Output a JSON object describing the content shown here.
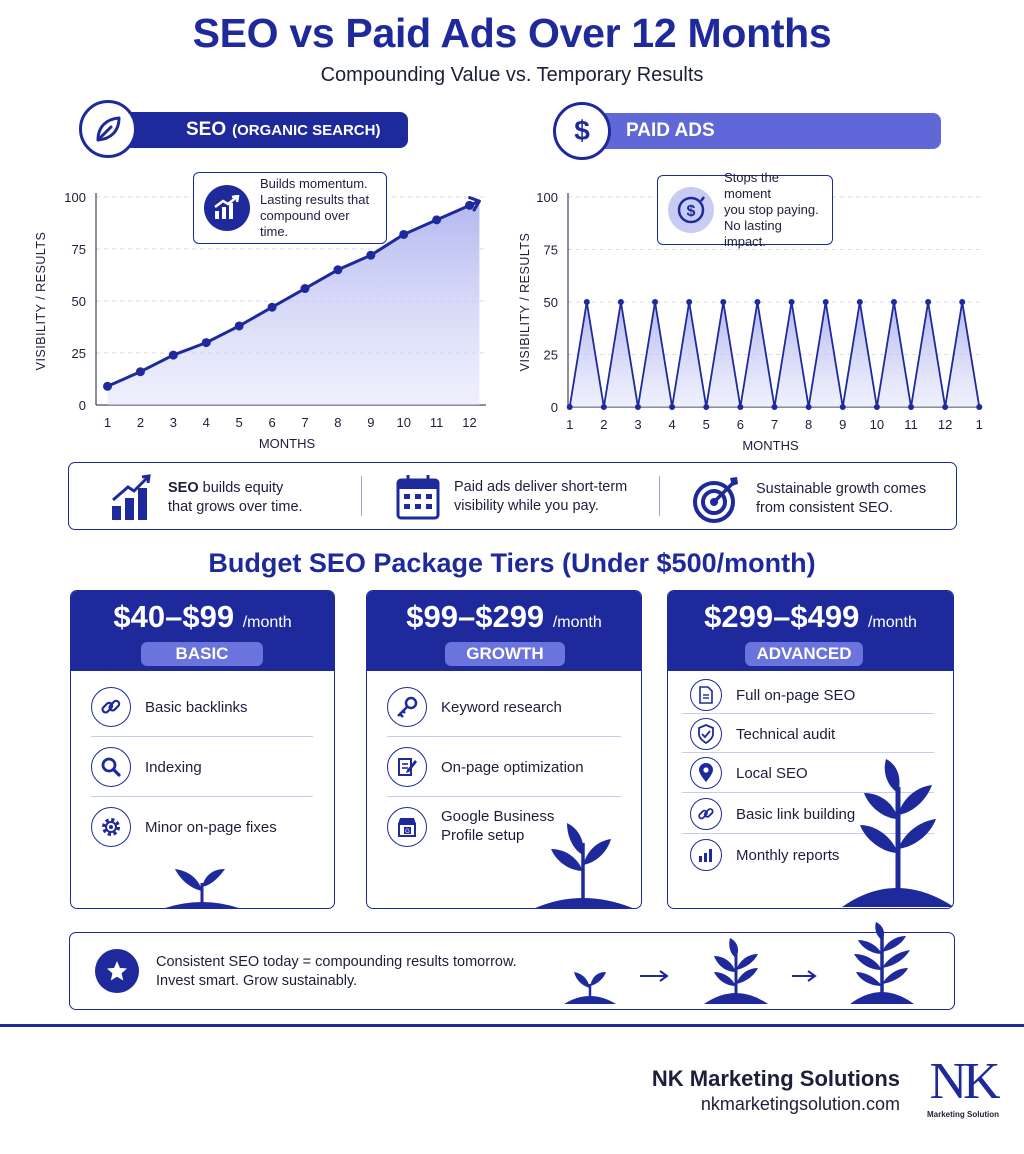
{
  "title": "SEO vs Paid Ads Over 12 Months",
  "subtitle": "Compounding Value vs. Temporary Results",
  "colors": {
    "primary": "#1e2a9b",
    "accent": "#5f68d6",
    "fill": "#c9ccf2"
  },
  "seo": {
    "label": "SEO",
    "label_sub": "(ORGANIC SEARCH)",
    "icon": "leaf-icon",
    "callout": [
      "Builds momentum.",
      "Lasting results that",
      "compound over time."
    ]
  },
  "paid": {
    "label": "PAID ADS",
    "icon": "dollar-icon",
    "callout": [
      "Stops the moment",
      "you stop paying.",
      "No lasting impact."
    ]
  },
  "chart_data": [
    {
      "type": "area",
      "ylabel": "VISIBILITY / RESULTS",
      "xlabel": "MONTHS",
      "ylim": [
        0,
        100
      ],
      "yticks": [
        "0",
        "25",
        "50",
        "75",
        "100"
      ],
      "x_tick_labels": [
        "1",
        "2",
        "3",
        "4",
        "5",
        "6",
        "7",
        "8",
        "9",
        "10",
        "11",
        "12"
      ],
      "grid": true,
      "series": [
        {
          "x": [
            1,
            2,
            3,
            4,
            5,
            6,
            7,
            8,
            9,
            10,
            11,
            12
          ],
          "y": [
            9,
            16,
            24,
            30,
            38,
            47,
            56,
            65,
            72,
            82,
            89,
            96
          ]
        }
      ]
    },
    {
      "type": "area",
      "ylabel": "VISIBILITY / RESULTS",
      "xlabel": "MONTHS",
      "ylim": [
        0,
        100
      ],
      "yticks": [
        "0",
        "25",
        "50",
        "75",
        "100"
      ],
      "x_tick_labels": [
        "1",
        "2",
        "3",
        "4",
        "5",
        "6",
        "7",
        "8",
        "9",
        "10",
        "11",
        "12",
        "1"
      ],
      "grid": true,
      "series": [
        {
          "x": [
            1,
            1.5,
            2,
            2.5,
            3,
            3.5,
            4,
            4.5,
            5,
            5.5,
            6,
            6.5,
            7,
            7.5,
            8,
            8.5,
            9,
            9.5,
            10,
            10.5,
            11,
            11.5,
            12,
            12.5,
            13
          ],
          "y": [
            0,
            50,
            0,
            50,
            0,
            50,
            0,
            50,
            0,
            50,
            0,
            50,
            0,
            50,
            0,
            50,
            0,
            50,
            0,
            50,
            0,
            50,
            0,
            50,
            0
          ]
        }
      ]
    }
  ],
  "band": {
    "items": [
      {
        "bold": "SEO",
        "text": " builds equity",
        "line2": "that grows over time.",
        "icon": "bar-chart-icon"
      },
      {
        "bold": "",
        "text": "Paid ads deliver short-term",
        "line2": "visibility while you pay.",
        "icon": "calendar-icon"
      },
      {
        "bold": "",
        "text": "Sustainable growth comes",
        "line2": "from consistent SEO.",
        "icon": "target-icon"
      }
    ]
  },
  "tiers_title": "Budget SEO Package Tiers (Under $500/month)",
  "tiers": [
    {
      "price": "$40–$99",
      "per": "/month",
      "name": "BASIC",
      "features": [
        {
          "label": "Basic backlinks",
          "icon": "link-icon"
        },
        {
          "label": "Indexing",
          "icon": "search-icon"
        },
        {
          "label": "Minor on-page fixes",
          "icon": "gear-icon"
        }
      ]
    },
    {
      "price": "$99–$299",
      "per": "/month",
      "name": "GROWTH",
      "features": [
        {
          "label": "Keyword research",
          "icon": "key-icon"
        },
        {
          "label": "On-page optimization",
          "icon": "document-edit-icon"
        },
        {
          "label": "Google Business",
          "label2": "Profile setup",
          "icon": "storefront-icon"
        }
      ]
    },
    {
      "price": "$299–$499",
      "per": "/month",
      "name": "ADVANCED",
      "features": [
        {
          "label": "Full on-page SEO",
          "icon": "document-icon"
        },
        {
          "label": "Technical audit",
          "icon": "shield-check-icon"
        },
        {
          "label": "Local SEO",
          "icon": "location-pin-icon"
        },
        {
          "label": "Basic link building",
          "icon": "link-icon"
        },
        {
          "label": "Monthly reports",
          "icon": "bar-chart-icon"
        }
      ]
    }
  ],
  "footer": {
    "line1": "Consistent SEO today = compounding results tomorrow.",
    "line2": "Invest smart. Grow sustainably.",
    "icon": "star-icon"
  },
  "brand": {
    "name": "NK Marketing Solutions",
    "url": "nkmarketingsolution.com",
    "logo_text": "NK",
    "logo_sub": "Marketing Solution"
  }
}
